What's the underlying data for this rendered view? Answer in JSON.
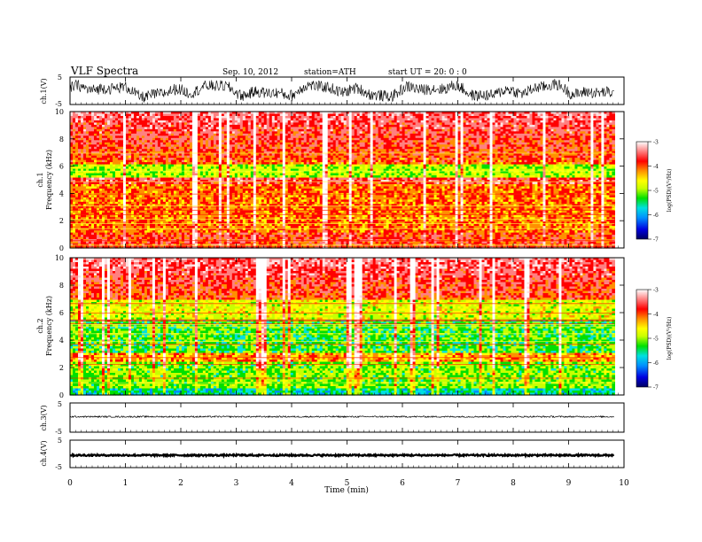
{
  "header": {
    "title": "VLF  Spectra",
    "date": "Sep. 10, 2012",
    "station": "station=ATH",
    "start": "start  UT  =   20: 0  : 0"
  },
  "chart_data": [
    {
      "type": "line",
      "panel": "ch1-waveform",
      "ylabel": "ch.1(V)",
      "ylim": [
        -5,
        5
      ],
      "yticks": [
        "5",
        "-5"
      ],
      "description_values": "broadband noise waveform",
      "color": "#000000"
    },
    {
      "type": "heatmap",
      "panel": "ch1-spectrogram",
      "ylabel": [
        "ch.1",
        "Frequency  (kHz)"
      ],
      "ylim": [
        0,
        10
      ],
      "yticks": [
        "0",
        "2",
        "4",
        "6",
        "8",
        "10"
      ],
      "xlim": [
        0,
        9.8
      ],
      "colorbar": {
        "label": "log(PSD)(V²/Hz)",
        "range": [
          -7,
          -3
        ],
        "ticks": [
          "-3",
          "-4",
          "-5",
          "-6",
          "-7"
        ]
      }
    },
    {
      "type": "heatmap",
      "panel": "ch2-spectrogram",
      "ylabel": [
        "ch.2",
        "Frequency  (kHz)"
      ],
      "ylim": [
        0,
        10
      ],
      "yticks": [
        "0",
        "2",
        "4",
        "6",
        "8",
        "10"
      ],
      "xlim": [
        0,
        9.8
      ],
      "colorbar": {
        "label": "log(PSD)(V²/Hz)",
        "range": [
          -7,
          -3
        ],
        "ticks": [
          "-3",
          "-4",
          "-5",
          "-6",
          "-7"
        ]
      }
    },
    {
      "type": "line",
      "panel": "ch3-waveform",
      "ylabel": "ch.3(V)",
      "ylim": [
        -5,
        5
      ],
      "yticks": [
        "5",
        "-5"
      ],
      "level": 0
    },
    {
      "type": "line",
      "panel": "ch4-waveform",
      "ylabel": "ch.4(V)",
      "ylim": [
        -5,
        5
      ],
      "yticks": [
        "5",
        "-5"
      ],
      "level": 0
    }
  ],
  "xaxis": {
    "label": "Time  (min)",
    "range": [
      0,
      10
    ],
    "ticks": [
      "0",
      "1",
      "2",
      "3",
      "4",
      "5",
      "6",
      "7",
      "8",
      "9",
      "10"
    ]
  },
  "colorscale": [
    "#000060",
    "#0000e0",
    "#0090ff",
    "#00e0e0",
    "#00e000",
    "#c8ff00",
    "#ffff00",
    "#ff9000",
    "#ff0000",
    "#ff8080",
    "#ffe0e0",
    "#ffffff"
  ]
}
